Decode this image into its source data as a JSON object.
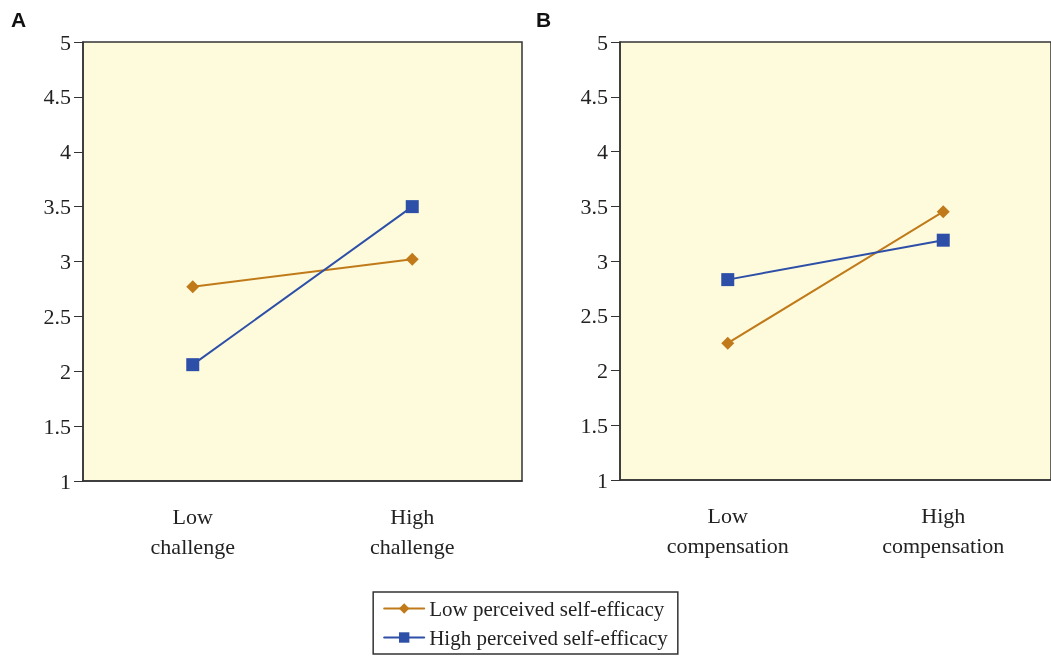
{
  "chart_data": [
    {
      "type": "line",
      "title": "A",
      "categories": [
        "Low\nchallenge",
        "High\nchallenge"
      ],
      "series": [
        {
          "name": "Low perceived self-efficacy",
          "color": "#c07a1a",
          "marker": "diamond",
          "values": [
            2.77,
            3.02
          ]
        },
        {
          "name": "High perceived self-efficacy",
          "color": "#2e4fa8",
          "marker": "square",
          "values": [
            2.06,
            3.5
          ]
        }
      ],
      "ylim": [
        1,
        5
      ],
      "yticks": [
        1,
        1.5,
        2,
        2.5,
        3,
        3.5,
        4,
        4.5,
        5
      ],
      "grid": false,
      "legend": "bottom",
      "line_style": "solid"
    },
    {
      "type": "line",
      "title": "B",
      "categories": [
        "Low\ncompensation",
        "High\ncompensation"
      ],
      "series": [
        {
          "color": "#c07a1a",
          "marker": "diamond",
          "values": [
            2.25,
            3.45
          ]
        },
        {
          "color": "#2e4fa8",
          "marker": "square",
          "values": [
            2.83,
            3.19
          ]
        }
      ],
      "ylim": [
        1,
        5
      ],
      "yticks": [
        1,
        1.5,
        2,
        2.5,
        3,
        3.5,
        4,
        4.5,
        5
      ],
      "grid": false,
      "line_style": "solid"
    }
  ]
}
